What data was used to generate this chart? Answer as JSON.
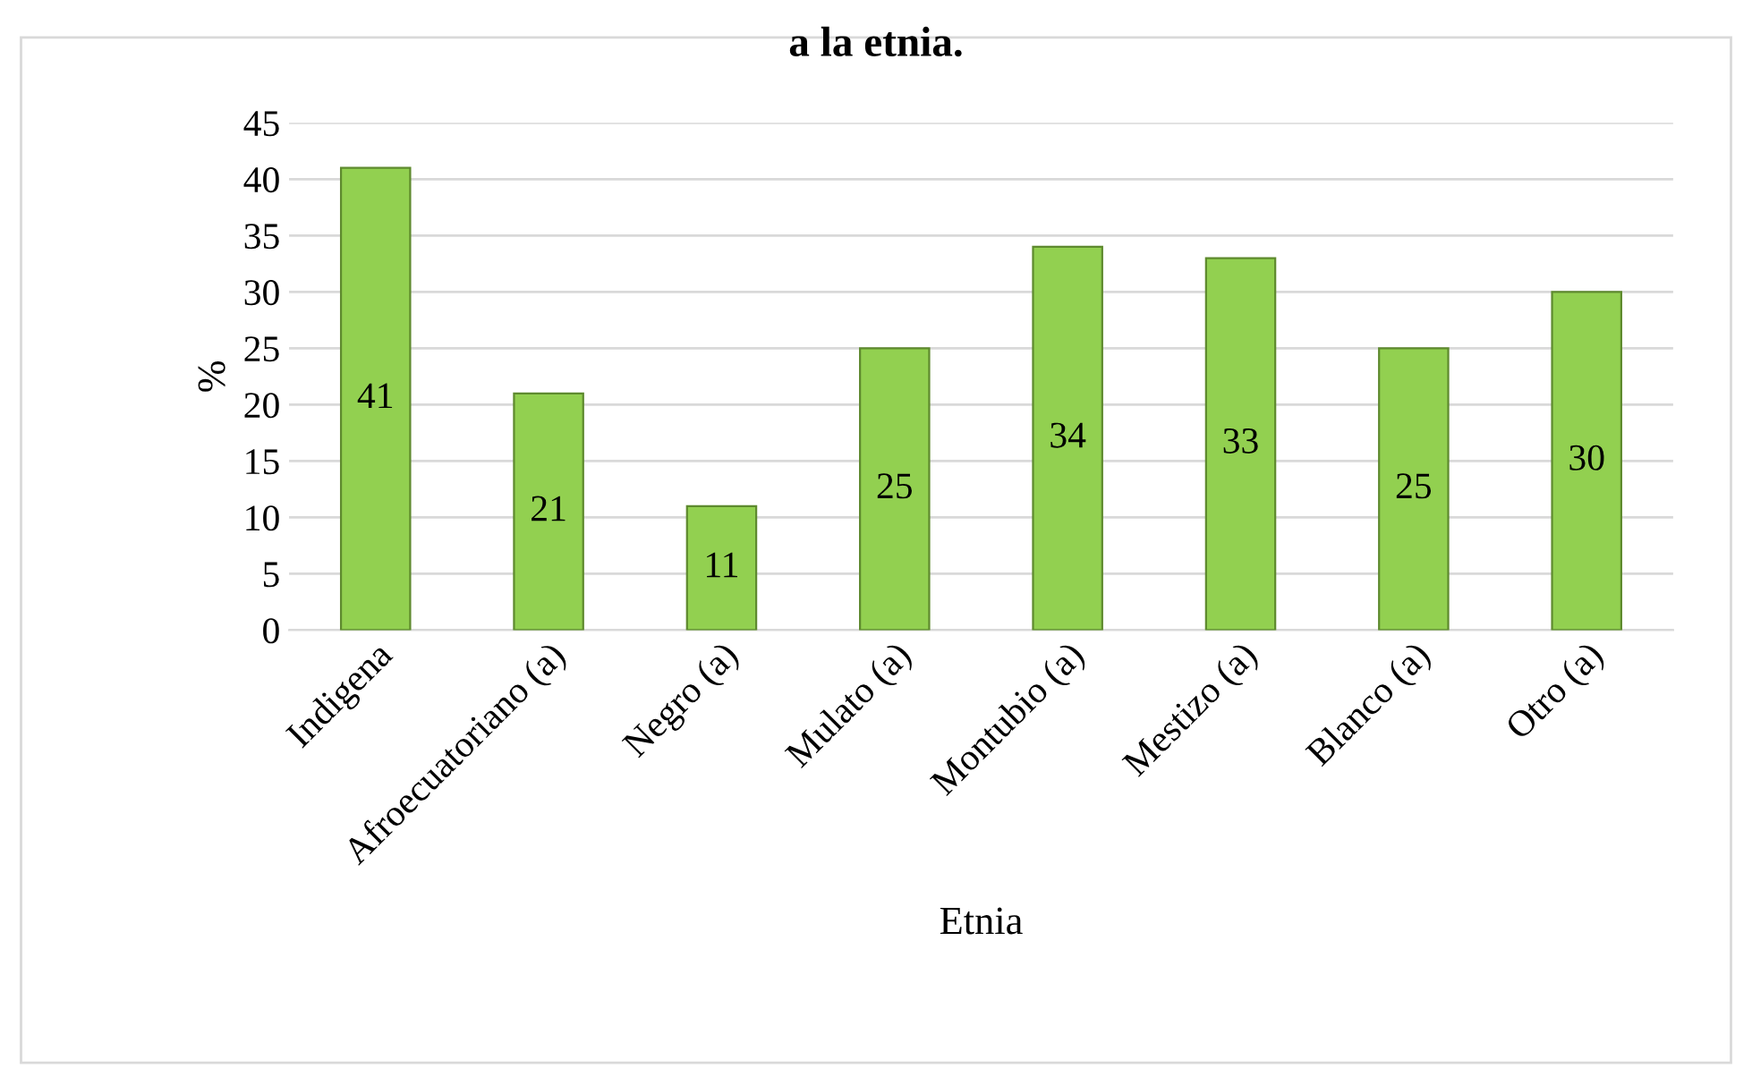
{
  "chart_data": {
    "type": "bar",
    "title": "a la etnia.",
    "xlabel": "Etnia",
    "ylabel": "%",
    "categories": [
      "Indigena",
      "Afroecuatoriano (a)",
      "Negro (a)",
      "Mulato (a)",
      "Montubio (a)",
      "Mestizo (a)",
      "Blanco (a)",
      "Otro (a)"
    ],
    "values": [
      41,
      21,
      11,
      25,
      34,
      33,
      25,
      30
    ],
    "color": "#92d050",
    "ylim": [
      0,
      45
    ],
    "yticks": [
      0,
      5,
      10,
      15,
      20,
      25,
      30,
      35,
      40,
      45
    ],
    "grid": "y",
    "data_labels": true
  }
}
